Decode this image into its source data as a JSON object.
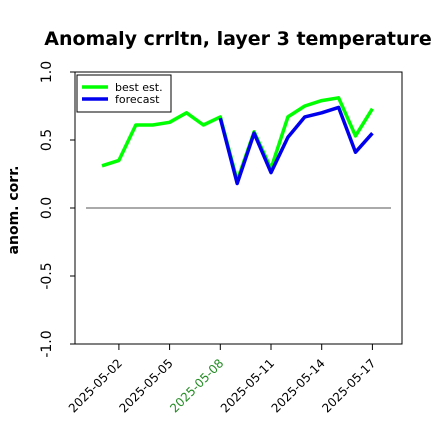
{
  "chart_data": {
    "type": "line",
    "title": "Anomaly crrltn, layer 3 temperature",
    "ylabel": "anom. corr.",
    "xlabel": "",
    "ylim": [
      -1.0,
      1.0
    ],
    "yticks": [
      "-1.0",
      "-0.5",
      "0.0",
      "0.5",
      "1.0"
    ],
    "ytick_values": [
      -1.0,
      -0.5,
      0.0,
      0.5,
      1.0
    ],
    "reference_line": 0.0,
    "x": [
      "2025-05-01",
      "2025-05-02",
      "2025-05-03",
      "2025-05-04",
      "2025-05-05",
      "2025-05-06",
      "2025-05-07",
      "2025-05-08",
      "2025-05-09",
      "2025-05-10",
      "2025-05-11",
      "2025-05-12",
      "2025-05-13",
      "2025-05-14",
      "2025-05-15",
      "2025-05-16",
      "2025-05-17"
    ],
    "xticks": [
      "2025-05-02",
      "2025-05-05",
      "2025-05-08",
      "2025-05-11",
      "2025-05-14",
      "2025-05-17"
    ],
    "xtick_colors": [
      "#000000",
      "#000000",
      "#228b22",
      "#000000",
      "#000000",
      "#000000"
    ],
    "series": [
      {
        "name": "best est.",
        "color": "#00ff00",
        "values": [
          0.31,
          0.35,
          0.61,
          0.61,
          0.63,
          0.7,
          0.61,
          0.67,
          0.2,
          0.56,
          0.29,
          0.67,
          0.75,
          0.79,
          0.81,
          0.53,
          0.73
        ]
      },
      {
        "name": "forecast",
        "color": "#0000ee",
        "values": [
          null,
          null,
          null,
          null,
          null,
          null,
          null,
          0.66,
          0.18,
          0.55,
          0.26,
          0.52,
          0.67,
          0.7,
          0.74,
          0.41,
          0.55
        ]
      }
    ],
    "legend_position": "top-left",
    "grid": false
  }
}
